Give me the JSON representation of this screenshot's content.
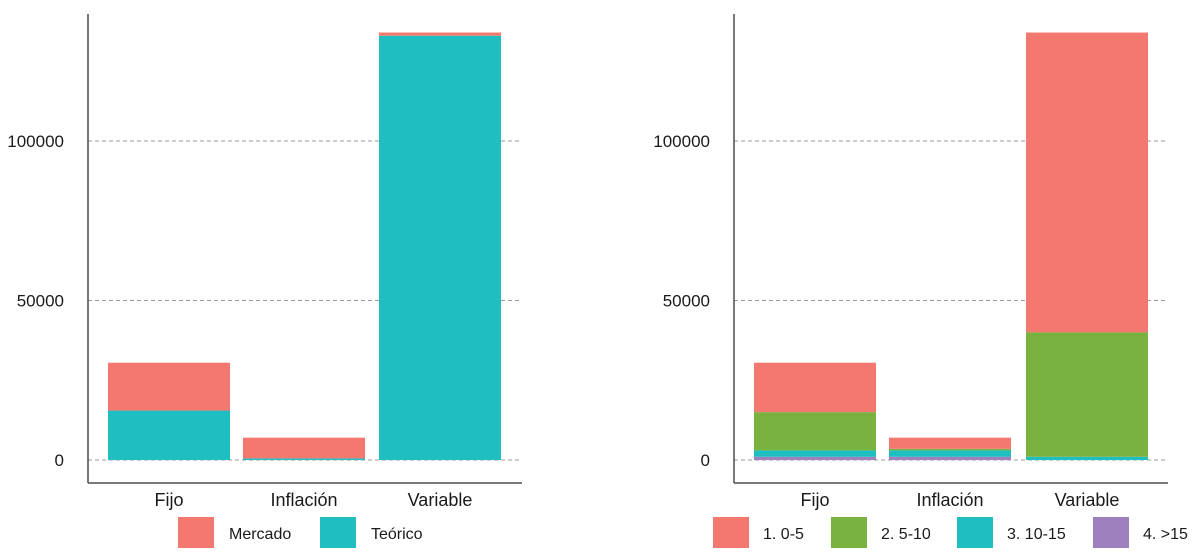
{
  "chart_data": [
    {
      "type": "bar",
      "stacked": true,
      "categories": [
        "Fijo",
        "Inflación",
        "Variable"
      ],
      "series": [
        {
          "name": "Teórico",
          "color": "#1fbfc1",
          "values": [
            15500,
            500,
            133000
          ]
        },
        {
          "name": "Mercado",
          "color": "#f37970",
          "values": [
            15000,
            6500,
            1000
          ]
        }
      ],
      "legend_order": [
        "Mercado",
        "Teórico"
      ],
      "yticks": [
        0,
        50000,
        100000
      ],
      "ylim": [
        -5000,
        140000
      ],
      "grid": "horizontal dashed",
      "legend_position": "bottom"
    },
    {
      "type": "bar",
      "stacked": true,
      "categories": [
        "Fijo",
        "Inflación",
        "Variable"
      ],
      "series": [
        {
          "name": "4. >15",
          "color": "#9e80be",
          "values": [
            1000,
            1000,
            0
          ]
        },
        {
          "name": "3. 10-15",
          "color": "#1fbfc1",
          "values": [
            2000,
            2000,
            1000
          ]
        },
        {
          "name": "2. 5-10",
          "color": "#7ab240",
          "values": [
            12000,
            500,
            39000
          ]
        },
        {
          "name": "1. 0-5",
          "color": "#f37970",
          "values": [
            15500,
            3500,
            94000
          ]
        }
      ],
      "legend_order": [
        "1. 0-5",
        "2. 5-10",
        "3. 10-15",
        "4. >15"
      ],
      "yticks": [
        0,
        50000,
        100000
      ],
      "ylim": [
        -5000,
        140000
      ],
      "grid": "horizontal dashed",
      "legend_position": "bottom"
    }
  ]
}
